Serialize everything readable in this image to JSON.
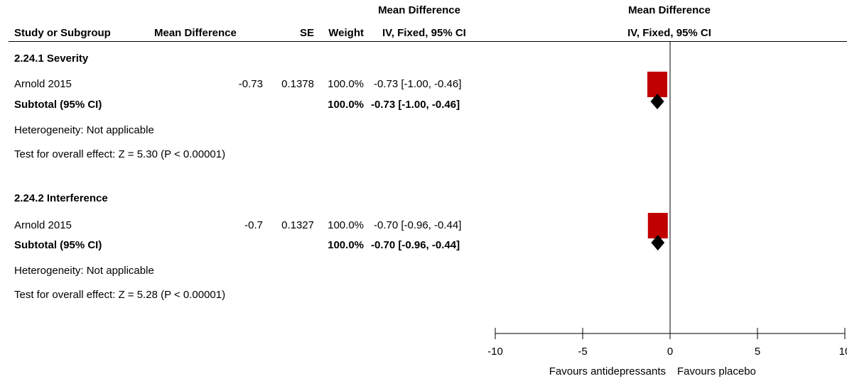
{
  "header": {
    "group_line1_left": "Mean Difference",
    "group_line1_right": "Mean Difference",
    "col_study": "Study or Subgroup",
    "col_md": "Mean Difference",
    "col_se": "SE",
    "col_weight": "Weight",
    "col_ci": "IV, Fixed, 95% CI",
    "col_plot": "IV, Fixed, 95% CI"
  },
  "subgroups": [
    {
      "title": "2.24.1 Severity",
      "study": {
        "name": "Arnold 2015",
        "md": "-0.73",
        "se": "0.1378",
        "weight": "100.0%",
        "ci": "-0.73 [-1.00, -0.46]"
      },
      "subtotal": {
        "label": "Subtotal (95% CI)",
        "weight": "100.0%",
        "ci": "-0.73 [-1.00, -0.46]"
      },
      "heterogeneity": "Heterogeneity: Not applicable",
      "overall_effect": "Test for overall effect: Z = 5.30 (P < 0.00001)"
    },
    {
      "title": "2.24.2 Interference",
      "study": {
        "name": "Arnold 2015",
        "md": "-0.7",
        "se": "0.1327",
        "weight": "100.0%",
        "ci": "-0.70 [-0.96, -0.44]"
      },
      "subtotal": {
        "label": "Subtotal (95% CI)",
        "weight": "100.0%",
        "ci": "-0.70 [-0.96, -0.44]"
      },
      "heterogeneity": "Heterogeneity: Not applicable",
      "overall_effect": "Test for overall effect: Z = 5.28 (P < 0.00001)"
    }
  ],
  "chart_data": {
    "type": "forest",
    "xlim": [
      -10,
      10
    ],
    "ticks": [
      -10,
      -5,
      0,
      5,
      10
    ],
    "tick_labels": [
      "-10",
      "-5",
      "0",
      "5",
      "10"
    ],
    "favours_left": "Favours antidepressants",
    "favours_right": "Favours placebo",
    "studies": [
      {
        "name": "Arnold 2015",
        "subgroup": "2.24.1 Severity",
        "estimate": -0.73,
        "ci_low": -1.0,
        "ci_high": -0.46,
        "weight": 100.0
      },
      {
        "name": "Arnold 2015",
        "subgroup": "2.24.2 Interference",
        "estimate": -0.7,
        "ci_low": -0.96,
        "ci_high": -0.44,
        "weight": 100.0
      }
    ],
    "subtotals": [
      {
        "subgroup": "2.24.1 Severity",
        "estimate": -0.73,
        "ci_low": -1.0,
        "ci_high": -0.46
      },
      {
        "subgroup": "2.24.2 Interference",
        "estimate": -0.7,
        "ci_low": -0.96,
        "ci_high": -0.44
      }
    ],
    "colors": {
      "study_marker": "#c00000",
      "diamond": "#000000"
    }
  }
}
